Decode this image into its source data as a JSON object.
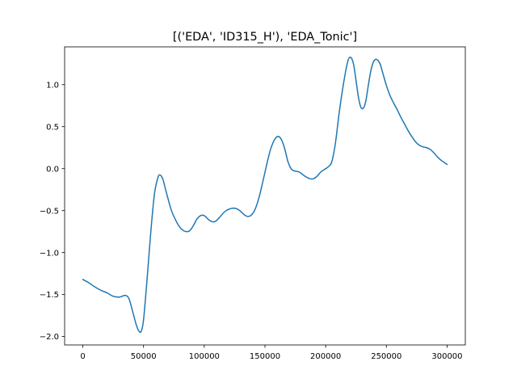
{
  "chart_data": {
    "type": "line",
    "title": "[('EDA', 'ID315_H'), 'EDA_Tonic']",
    "xlabel": "",
    "ylabel": "",
    "xlim": [
      -15000,
      315000
    ],
    "ylim": [
      -2.1,
      1.45
    ],
    "xticks": [
      0,
      50000,
      100000,
      150000,
      200000,
      250000,
      300000
    ],
    "xtick_labels": [
      "0",
      "50000",
      "100000",
      "150000",
      "200000",
      "250000",
      "300000"
    ],
    "yticks": [
      -2.0,
      -1.5,
      -1.0,
      -0.5,
      0.0,
      0.5,
      1.0
    ],
    "ytick_labels": [
      "−2.0",
      "−1.5",
      "−1.0",
      "−0.5",
      "0.0",
      "0.5",
      "1.0"
    ],
    "grid": false,
    "legend": "none",
    "line_color": "#1f77b4",
    "series": [
      {
        "x": [
          0,
          5000,
          10000,
          15000,
          20000,
          25000,
          30000,
          35000,
          38000,
          41000,
          44000,
          46000,
          48000,
          50000,
          53000,
          56000,
          59000,
          62000,
          64000,
          66000,
          68000,
          70000,
          73000,
          76000,
          79000,
          82000,
          85000,
          88000,
          91000,
          94000,
          97000,
          100000,
          103000,
          106000,
          109000,
          112000,
          115000,
          118000,
          121000,
          124000,
          127000,
          130000,
          133000,
          136000,
          139000,
          142000,
          145000,
          148000,
          151000,
          154000,
          157000,
          160000,
          163000,
          166000,
          169000,
          172000,
          175000,
          178000,
          181000,
          184000,
          187000,
          190000,
          193000,
          196000,
          199000,
          202000,
          205000,
          208000,
          211000,
          214000,
          217000,
          219000,
          221000,
          223000,
          225000,
          227000,
          229000,
          231000,
          233000,
          235000,
          237000,
          239000,
          241000,
          243000,
          245000,
          247000,
          250000,
          253000,
          256000,
          259000,
          262000,
          265000,
          268000,
          271000,
          274000,
          277000,
          280000,
          283000,
          286000,
          289000,
          292000,
          295000,
          298000,
          300000
        ],
        "y": [
          -1.32,
          -1.36,
          -1.41,
          -1.45,
          -1.48,
          -1.52,
          -1.53,
          -1.51,
          -1.55,
          -1.7,
          -1.86,
          -1.93,
          -1.94,
          -1.8,
          -1.3,
          -0.75,
          -0.3,
          -0.1,
          -0.08,
          -0.13,
          -0.24,
          -0.35,
          -0.5,
          -0.6,
          -0.68,
          -0.73,
          -0.75,
          -0.74,
          -0.68,
          -0.6,
          -0.56,
          -0.56,
          -0.6,
          -0.63,
          -0.63,
          -0.59,
          -0.54,
          -0.5,
          -0.48,
          -0.47,
          -0.48,
          -0.51,
          -0.55,
          -0.57,
          -0.55,
          -0.48,
          -0.35,
          -0.17,
          0.02,
          0.2,
          0.32,
          0.38,
          0.36,
          0.25,
          0.08,
          -0.01,
          -0.03,
          -0.04,
          -0.07,
          -0.1,
          -0.12,
          -0.12,
          -0.09,
          -0.04,
          -0.01,
          0.02,
          0.08,
          0.3,
          0.65,
          0.95,
          1.2,
          1.31,
          1.32,
          1.24,
          1.05,
          0.85,
          0.73,
          0.72,
          0.8,
          0.98,
          1.15,
          1.26,
          1.3,
          1.29,
          1.24,
          1.14,
          0.99,
          0.87,
          0.78,
          0.7,
          0.61,
          0.53,
          0.45,
          0.38,
          0.32,
          0.28,
          0.26,
          0.25,
          0.23,
          0.19,
          0.14,
          0.1,
          0.07,
          0.05
        ]
      }
    ]
  }
}
